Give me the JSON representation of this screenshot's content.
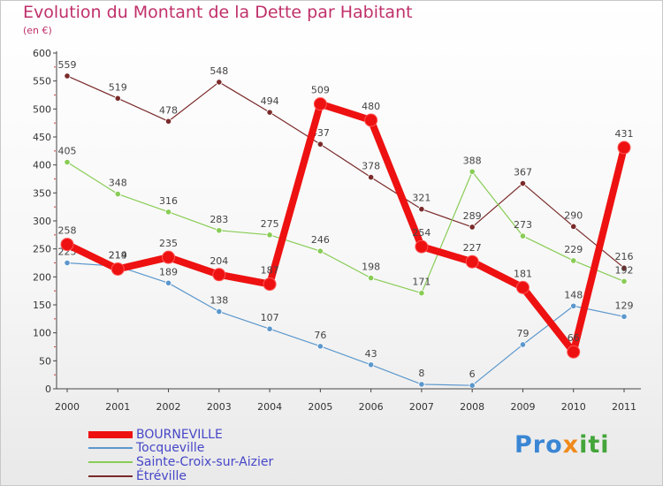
{
  "title": "Evolution du Montant de la Dette par Habitant",
  "subtitle": "(en €)",
  "chart_data": {
    "type": "line",
    "title": "Evolution du Montant de la Dette par Habitant",
    "ylabel": "(en €)",
    "xlabel": "",
    "x": [
      "2000",
      "2001",
      "2002",
      "2003",
      "2004",
      "2005",
      "2006",
      "2007",
      "2008",
      "2009",
      "2010",
      "2011"
    ],
    "ylim": [
      0,
      600
    ],
    "yticks": [
      0,
      50,
      100,
      150,
      200,
      250,
      300,
      350,
      400,
      450,
      500,
      550,
      600
    ],
    "series": [
      {
        "name": "Étréville",
        "color": "#7a2a2a",
        "values": [
          559,
          519,
          478,
          548,
          494,
          437,
          378,
          321,
          289,
          367,
          290,
          216
        ]
      },
      {
        "name": "Sainte-Croix-sur-Aizier",
        "color": "#88cc55",
        "values": [
          405,
          348,
          316,
          283,
          275,
          246,
          198,
          171,
          388,
          273,
          229,
          192
        ]
      },
      {
        "name": "Tocqueville",
        "color": "#5b97cc",
        "values": [
          225,
          219,
          189,
          138,
          107,
          76,
          43,
          8,
          6,
          79,
          148,
          129
        ]
      },
      {
        "name": "BOURNEVILLE",
        "color": "#ee1111",
        "values": [
          258,
          214,
          235,
          204,
          187,
          509,
          480,
          254,
          227,
          181,
          66,
          431
        ]
      }
    ]
  },
  "legend": [
    {
      "name": "BOURNEVILLE",
      "color": "#ee1111"
    },
    {
      "name": "Tocqueville",
      "color": "#5b97cc"
    },
    {
      "name": "Sainte-Croix-sur-Aizier",
      "color": "#88cc55"
    },
    {
      "name": "Étréville",
      "color": "#7a2a2a"
    }
  ],
  "logo": {
    "parts": [
      "Pro",
      "x",
      "iti"
    ]
  }
}
